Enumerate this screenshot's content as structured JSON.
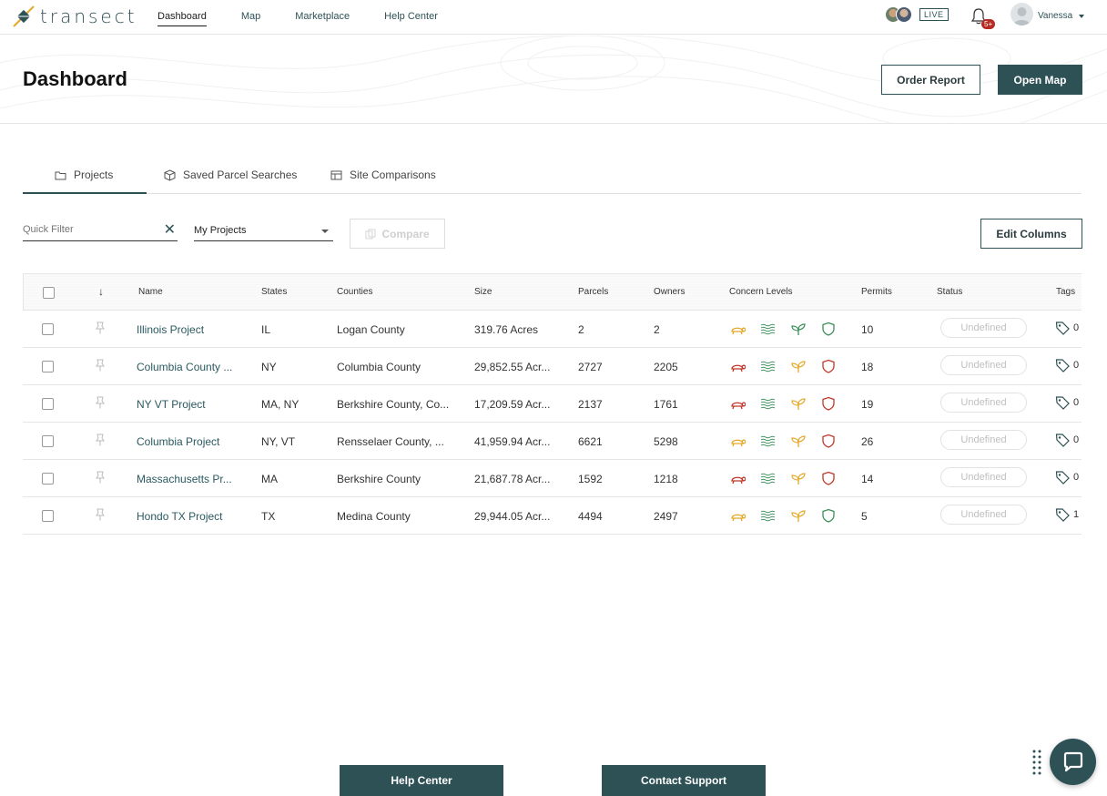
{
  "app": {
    "logo_text": "transect"
  },
  "nav": {
    "links": [
      "Dashboard",
      "Map",
      "Marketplace",
      "Help Center"
    ],
    "active": "Dashboard",
    "live_label": "LIVE",
    "notification_count": "5+",
    "user_name": "Vanessa"
  },
  "header": {
    "title": "Dashboard",
    "order_report": "Order Report",
    "open_map": "Open Map"
  },
  "tabs": [
    {
      "label": "Projects",
      "icon": "folder-icon",
      "active": true
    },
    {
      "label": "Saved Parcel Searches",
      "icon": "cube-icon",
      "active": false
    },
    {
      "label": "Site Comparisons",
      "icon": "table-icon",
      "active": false
    }
  ],
  "filters": {
    "quick_filter_placeholder": "Quick Filter",
    "project_scope": "My Projects",
    "compare": "Compare",
    "edit_columns": "Edit Columns"
  },
  "table": {
    "columns": [
      "Name",
      "States",
      "Counties",
      "Size",
      "Parcels",
      "Owners",
      "Concern Levels",
      "Permits",
      "Status",
      "Tags"
    ],
    "sort_indicator": "↓",
    "concern_colors": {
      "yellow": "#e3a92b",
      "red": "#c0392b",
      "green": "#3a8f5a"
    },
    "rows": [
      {
        "name": "Illinois Project",
        "states": "IL",
        "counties": "Logan County",
        "size": "319.76 Acres",
        "parcels": "2",
        "owners": "2",
        "concern": [
          "yellow",
          "green",
          "green",
          "green"
        ],
        "permits": "10",
        "status": "Undefined",
        "tags": "0"
      },
      {
        "name": "Columbia County ...",
        "states": "NY",
        "counties": "Columbia County",
        "size": "29,852.55 Acr...",
        "parcels": "2727",
        "owners": "2205",
        "concern": [
          "red",
          "green",
          "yellow",
          "red"
        ],
        "permits": "18",
        "status": "Undefined",
        "tags": "0"
      },
      {
        "name": "NY VT Project",
        "states": "MA, NY",
        "counties": "Berkshire County, Co...",
        "size": "17,209.59 Acr...",
        "parcels": "2137",
        "owners": "1761",
        "concern": [
          "red",
          "green",
          "yellow",
          "red"
        ],
        "permits": "19",
        "status": "Undefined",
        "tags": "0"
      },
      {
        "name": "Columbia Project",
        "states": "NY, VT",
        "counties": "Rensselaer County, ...",
        "size": "41,959.94 Acr...",
        "parcels": "6621",
        "owners": "5298",
        "concern": [
          "yellow",
          "green",
          "yellow",
          "red"
        ],
        "permits": "26",
        "status": "Undefined",
        "tags": "0"
      },
      {
        "name": "Massachusetts Pr...",
        "states": "MA",
        "counties": "Berkshire County",
        "size": "21,687.78 Acr...",
        "parcels": "1592",
        "owners": "1218",
        "concern": [
          "red",
          "green",
          "yellow",
          "red"
        ],
        "permits": "14",
        "status": "Undefined",
        "tags": "0"
      },
      {
        "name": "Hondo TX Project",
        "states": "TX",
        "counties": "Medina County",
        "size": "29,944.05 Acr...",
        "parcels": "4494",
        "owners": "2497",
        "concern": [
          "yellow",
          "green",
          "yellow",
          "green"
        ],
        "permits": "5",
        "status": "Undefined",
        "tags": "1"
      }
    ]
  },
  "footer": {
    "help_center": "Help Center",
    "contact_support": "Contact Support"
  }
}
